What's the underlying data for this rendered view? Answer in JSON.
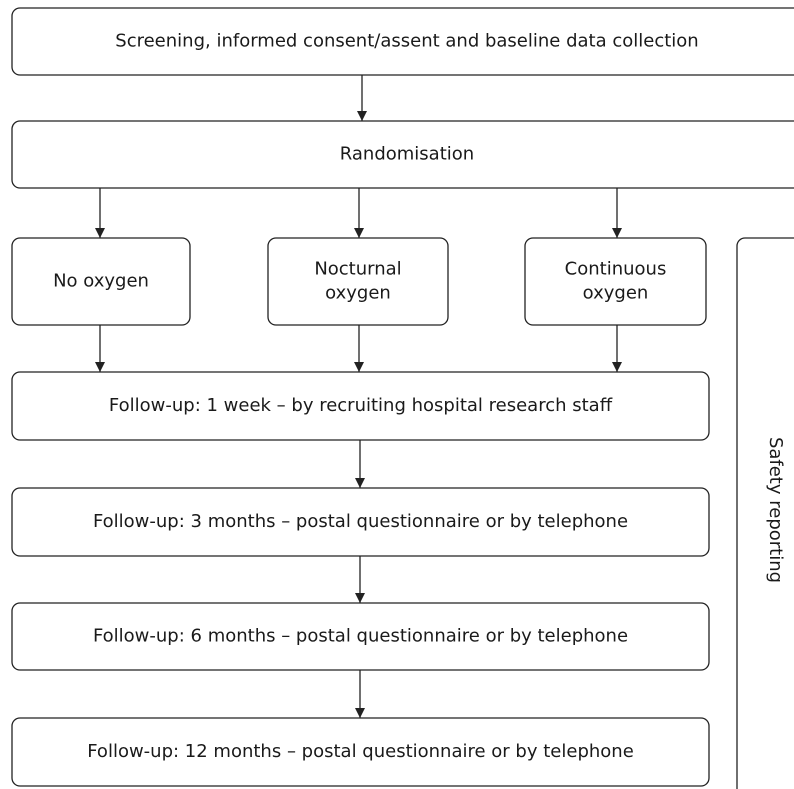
{
  "nodes": [
    {
      "label": [
        "Screening, informed consent/assent and baseline data collection"
      ]
    },
    {
      "label": [
        "Randomisation"
      ]
    },
    {
      "label": [
        "No oxygen"
      ]
    },
    {
      "label": [
        "Nocturnal",
        "oxygen"
      ]
    },
    {
      "label": [
        "Continuous",
        "oxygen"
      ]
    },
    {
      "label": [
        "Follow-up: 1 week – by recruiting hospital research staff"
      ]
    },
    {
      "label": [
        "Follow-up: 3 months – postal questionnaire or by telephone"
      ]
    },
    {
      "label": [
        "Follow-up: 6 months – postal questionnaire or by telephone"
      ]
    },
    {
      "label": [
        "Follow-up: 12 months – postal questionnaire or by telephone"
      ]
    },
    {
      "label": [
        "Safety reporting"
      ]
    }
  ]
}
